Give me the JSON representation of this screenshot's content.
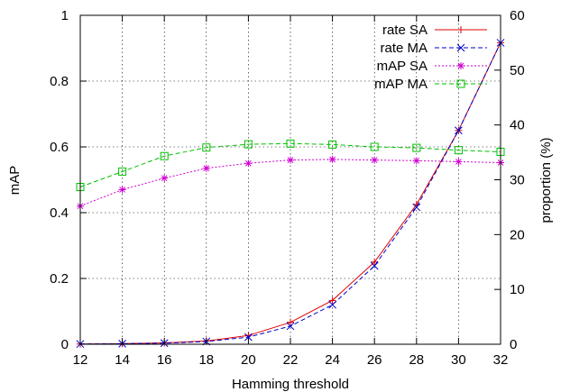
{
  "chart_data": {
    "type": "line",
    "xlabel": "Hamming threshold",
    "ylabel": "mAP",
    "y2label": "proportion (%)",
    "x": [
      12,
      14,
      16,
      18,
      20,
      22,
      24,
      26,
      28,
      30,
      32
    ],
    "xlim": [
      12,
      32
    ],
    "ylim": [
      0,
      1
    ],
    "y2lim": [
      0,
      60
    ],
    "xticks": [
      "12",
      "14",
      "16",
      "18",
      "20",
      "22",
      "24",
      "26",
      "28",
      "30",
      "32"
    ],
    "yticks": [
      "0",
      "0.2",
      "0.4",
      "0.6",
      "0.8",
      "1"
    ],
    "y2ticks": [
      "0",
      "10",
      "20",
      "30",
      "40",
      "50",
      "60"
    ],
    "grid": true,
    "legend_position": "top-right",
    "series": [
      {
        "name": "rate SA",
        "axis": "right",
        "color": "#e00000",
        "dash": "solid",
        "marker": "plus",
        "values": [
          0.05,
          0.1,
          0.25,
          0.6,
          1.6,
          4.0,
          8.0,
          15.0,
          25.5,
          39.0,
          55.0
        ]
      },
      {
        "name": "rate MA",
        "axis": "right",
        "color": "#0000cc",
        "dash": "dashed",
        "marker": "cross",
        "values": [
          0.05,
          0.1,
          0.2,
          0.5,
          1.3,
          3.3,
          7.2,
          14.3,
          25.0,
          39.0,
          55.0
        ]
      },
      {
        "name": "mAP SA",
        "axis": "left",
        "color": "#d000d0",
        "dash": "dotted",
        "marker": "star",
        "values": [
          0.42,
          0.47,
          0.505,
          0.535,
          0.55,
          0.56,
          0.562,
          0.56,
          0.558,
          0.555,
          0.552
        ]
      },
      {
        "name": "mAP MA",
        "axis": "left",
        "color": "#00c000",
        "dash": "dashed",
        "marker": "square",
        "values": [
          0.478,
          0.525,
          0.572,
          0.598,
          0.608,
          0.61,
          0.607,
          0.6,
          0.597,
          0.59,
          0.585
        ]
      }
    ]
  }
}
